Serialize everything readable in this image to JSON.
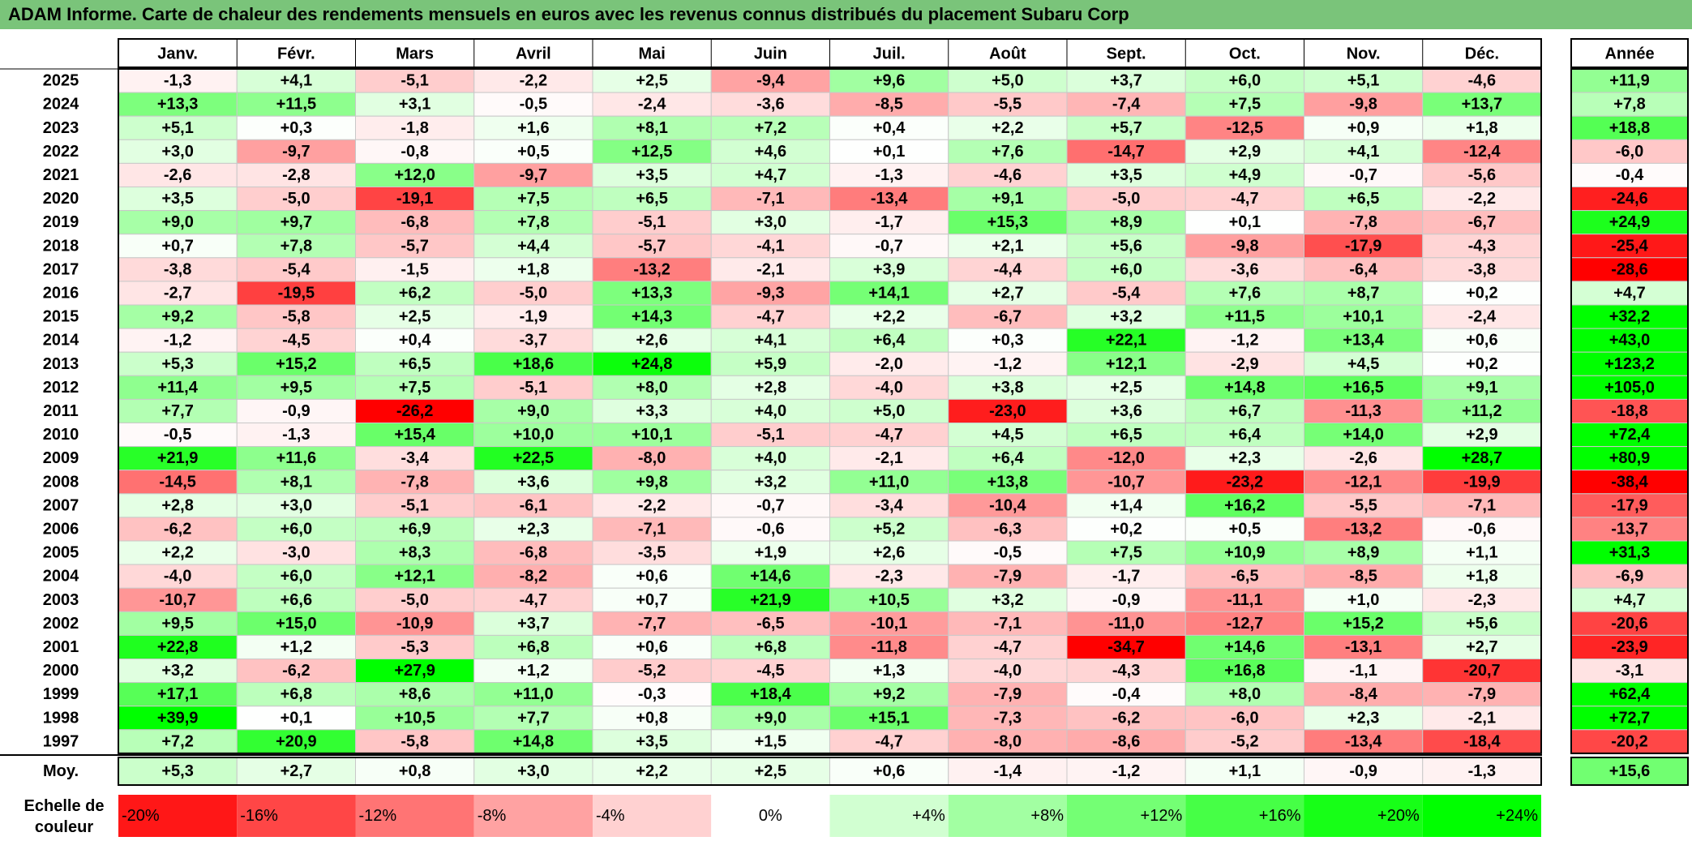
{
  "title": "ADAM Informe. Carte de chaleur des rendements mensuels en euros avec les revenus connus distribués du placement Subaru Corp",
  "colors": {
    "title_bg": "#7ac47a",
    "neg": "#ff0000",
    "pos": "#00ff00",
    "neutral": "#ffffff"
  },
  "chart_data": {
    "type": "heatmap",
    "title": "ADAM Informe. Carte de chaleur des rendements mensuels en euros avec les revenus connus distribués du placement Subaru Corp",
    "columns": [
      "Janv.",
      "Févr.",
      "Mars",
      "Avril",
      "Mai",
      "Juin",
      "Juil.",
      "Août",
      "Sept.",
      "Oct.",
      "Nov.",
      "Déc."
    ],
    "annual_label": "Année",
    "rows": [
      {
        "year": "2025",
        "values": [
          "-1,3",
          "+4,1",
          "-5,1",
          "-2,2",
          "+2,5",
          "-9,4",
          "+9,6",
          "+5,0",
          "+3,7",
          "+6,0",
          "+5,1",
          "-4,6"
        ],
        "annual": "+11,9"
      },
      {
        "year": "2024",
        "values": [
          "+13,3",
          "+11,5",
          "+3,1",
          "-0,5",
          "-2,4",
          "-3,6",
          "-8,5",
          "-5,5",
          "-7,4",
          "+7,5",
          "-9,8",
          "+13,7"
        ],
        "annual": "+7,8"
      },
      {
        "year": "2023",
        "values": [
          "+5,1",
          "+0,3",
          "-1,8",
          "+1,6",
          "+8,1",
          "+7,2",
          "+0,4",
          "+2,2",
          "+5,7",
          "-12,5",
          "+0,9",
          "+1,8"
        ],
        "annual": "+18,8"
      },
      {
        "year": "2022",
        "values": [
          "+3,0",
          "-9,7",
          "-0,8",
          "+0,5",
          "+12,5",
          "+4,6",
          "+0,1",
          "+7,6",
          "-14,7",
          "+2,9",
          "+4,1",
          "-12,4"
        ],
        "annual": "-6,0"
      },
      {
        "year": "2021",
        "values": [
          "-2,6",
          "-2,8",
          "+12,0",
          "-9,7",
          "+3,5",
          "+4,7",
          "-1,3",
          "-4,6",
          "+3,5",
          "+4,9",
          "-0,7",
          "-5,6"
        ],
        "annual": "-0,4"
      },
      {
        "year": "2020",
        "values": [
          "+3,5",
          "-5,0",
          "-19,1",
          "+7,5",
          "+6,5",
          "-7,1",
          "-13,4",
          "+9,1",
          "-5,0",
          "-4,7",
          "+6,5",
          "-2,2"
        ],
        "annual": "-24,6"
      },
      {
        "year": "2019",
        "values": [
          "+9,0",
          "+9,7",
          "-6,8",
          "+7,8",
          "-5,1",
          "+3,0",
          "-1,7",
          "+15,3",
          "+8,9",
          "+0,1",
          "-7,8",
          "-6,7"
        ],
        "annual": "+24,9"
      },
      {
        "year": "2018",
        "values": [
          "+0,7",
          "+7,8",
          "-5,7",
          "+4,4",
          "-5,7",
          "-4,1",
          "-0,7",
          "+2,1",
          "+5,6",
          "-9,8",
          "-17,9",
          "-4,3"
        ],
        "annual": "-25,4"
      },
      {
        "year": "2017",
        "values": [
          "-3,8",
          "-5,4",
          "-1,5",
          "+1,8",
          "-13,2",
          "-2,1",
          "+3,9",
          "-4,4",
          "+6,0",
          "-3,6",
          "-6,4",
          "-3,8"
        ],
        "annual": "-28,6"
      },
      {
        "year": "2016",
        "values": [
          "-2,7",
          "-19,5",
          "+6,2",
          "-5,0",
          "+13,3",
          "-9,3",
          "+14,1",
          "+2,7",
          "-5,4",
          "+7,6",
          "+8,7",
          "+0,2"
        ],
        "annual": "+4,7"
      },
      {
        "year": "2015",
        "values": [
          "+9,2",
          "-5,8",
          "+2,5",
          "-1,9",
          "+14,3",
          "-4,7",
          "+2,2",
          "-6,7",
          "+3,2",
          "+11,5",
          "+10,1",
          "-2,4"
        ],
        "annual": "+32,2"
      },
      {
        "year": "2014",
        "values": [
          "-1,2",
          "-4,5",
          "+0,4",
          "-3,7",
          "+2,6",
          "+4,1",
          "+6,4",
          "+0,3",
          "+22,1",
          "-1,2",
          "+13,4",
          "+0,6"
        ],
        "annual": "+43,0"
      },
      {
        "year": "2013",
        "values": [
          "+5,3",
          "+15,2",
          "+6,5",
          "+18,6",
          "+24,8",
          "+5,9",
          "-2,0",
          "-1,2",
          "+12,1",
          "-2,9",
          "+4,5",
          "+0,2"
        ],
        "annual": "+123,2"
      },
      {
        "year": "2012",
        "values": [
          "+11,4",
          "+9,5",
          "+7,5",
          "-5,1",
          "+8,0",
          "+2,8",
          "-4,0",
          "+3,8",
          "+2,5",
          "+14,8",
          "+16,5",
          "+9,1"
        ],
        "annual": "+105,0"
      },
      {
        "year": "2011",
        "values": [
          "+7,7",
          "-0,9",
          "-26,2",
          "+9,0",
          "+3,3",
          "+4,0",
          "+5,0",
          "-23,0",
          "+3,6",
          "+6,7",
          "-11,3",
          "+11,2"
        ],
        "annual": "-18,8"
      },
      {
        "year": "2010",
        "values": [
          "-0,5",
          "-1,3",
          "+15,4",
          "+10,0",
          "+10,1",
          "-5,1",
          "-4,7",
          "+4,5",
          "+6,5",
          "+6,4",
          "+14,0",
          "+2,9"
        ],
        "annual": "+72,4"
      },
      {
        "year": "2009",
        "values": [
          "+21,9",
          "+11,6",
          "-3,4",
          "+22,5",
          "-8,0",
          "+4,0",
          "-2,1",
          "+6,4",
          "-12,0",
          "+2,3",
          "-2,6",
          "+28,7"
        ],
        "annual": "+80,9"
      },
      {
        "year": "2008",
        "values": [
          "-14,5",
          "+8,1",
          "-7,8",
          "+3,6",
          "+9,8",
          "+3,2",
          "+11,0",
          "+13,8",
          "-10,7",
          "-23,2",
          "-12,1",
          "-19,9"
        ],
        "annual": "-38,4"
      },
      {
        "year": "2007",
        "values": [
          "+2,8",
          "+3,0",
          "-5,1",
          "-6,1",
          "-2,2",
          "-0,7",
          "-3,4",
          "-10,4",
          "+1,4",
          "+16,2",
          "-5,5",
          "-7,1"
        ],
        "annual": "-17,9"
      },
      {
        "year": "2006",
        "values": [
          "-6,2",
          "+6,0",
          "+6,9",
          "+2,3",
          "-7,1",
          "-0,6",
          "+5,2",
          "-6,3",
          "+0,2",
          "+0,5",
          "-13,2",
          "-0,6"
        ],
        "annual": "-13,7"
      },
      {
        "year": "2005",
        "values": [
          "+2,2",
          "-3,0",
          "+8,3",
          "-6,8",
          "-3,5",
          "+1,9",
          "+2,6",
          "-0,5",
          "+7,5",
          "+10,9",
          "+8,9",
          "+1,1"
        ],
        "annual": "+31,3"
      },
      {
        "year": "2004",
        "values": [
          "-4,0",
          "+6,0",
          "+12,1",
          "-8,2",
          "+0,6",
          "+14,6",
          "-2,3",
          "-7,9",
          "-1,7",
          "-6,5",
          "-8,5",
          "+1,8"
        ],
        "annual": "-6,9"
      },
      {
        "year": "2003",
        "values": [
          "-10,7",
          "+6,6",
          "-5,0",
          "-4,7",
          "+0,7",
          "+21,9",
          "+10,5",
          "+3,2",
          "-0,9",
          "-11,1",
          "+1,0",
          "-2,3"
        ],
        "annual": "+4,7"
      },
      {
        "year": "2002",
        "values": [
          "+9,5",
          "+15,0",
          "-10,9",
          "+3,7",
          "-7,7",
          "-6,5",
          "-10,1",
          "-7,1",
          "-11,0",
          "-12,7",
          "+15,2",
          "+5,6"
        ],
        "annual": "-20,6"
      },
      {
        "year": "2001",
        "values": [
          "+22,8",
          "+1,2",
          "-5,3",
          "+6,8",
          "+0,6",
          "+6,8",
          "-11,8",
          "-4,7",
          "-34,7",
          "+14,6",
          "-13,1",
          "+2,7"
        ],
        "annual": "-23,9"
      },
      {
        "year": "2000",
        "values": [
          "+3,2",
          "-6,2",
          "+27,9",
          "+1,2",
          "-5,2",
          "-4,5",
          "+1,3",
          "-4,0",
          "-4,3",
          "+16,8",
          "-1,1",
          "-20,7"
        ],
        "annual": "-3,1"
      },
      {
        "year": "1999",
        "values": [
          "+17,1",
          "+6,8",
          "+8,6",
          "+11,0",
          "-0,3",
          "+18,4",
          "+9,2",
          "-7,9",
          "-0,4",
          "+8,0",
          "-8,4",
          "-7,9"
        ],
        "annual": "+62,4"
      },
      {
        "year": "1998",
        "values": [
          "+39,9",
          "+0,1",
          "+10,5",
          "+7,7",
          "+0,8",
          "+9,0",
          "+15,1",
          "-7,3",
          "-6,2",
          "-6,0",
          "+2,3",
          "-2,1"
        ],
        "annual": "+72,7"
      },
      {
        "year": "1997",
        "values": [
          "+7,2",
          "+20,9",
          "-5,8",
          "+14,8",
          "+3,5",
          "+1,5",
          "-4,7",
          "-8,0",
          "-8,6",
          "-5,2",
          "-13,4",
          "-18,4"
        ],
        "annual": "-20,2"
      }
    ],
    "average": {
      "label": "Moy.",
      "values": [
        "+5,3",
        "+2,7",
        "+0,8",
        "+3,0",
        "+2,2",
        "+2,5",
        "+0,6",
        "-1,4",
        "-1,2",
        "+1,1",
        "-0,9",
        "-1,3"
      ],
      "annual": "+15,6"
    },
    "scale": {
      "label_line1": "Echelle de",
      "label_line2": "couleur",
      "steps": [
        "-20%",
        "-16%",
        "-12%",
        "-8%",
        "-4%",
        "0%",
        "+4%",
        "+8%",
        "+12%",
        "+16%",
        "+20%",
        "+24%"
      ]
    }
  }
}
